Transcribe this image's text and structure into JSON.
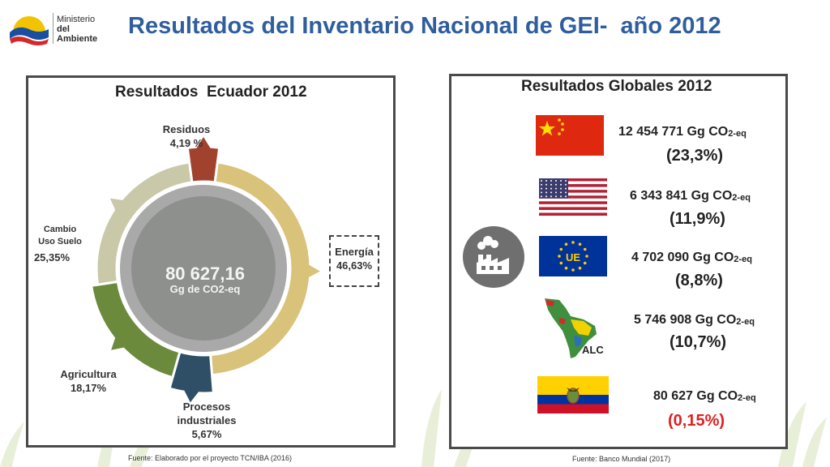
{
  "header": {
    "logo_line1": "Ministerio",
    "logo_line2": "del Ambiente",
    "title": "Resultados del Inventario Nacional de GEI-  año 2012"
  },
  "left_panel": {
    "title": "Resultados  Ecuador 2012",
    "center_value": "80 627,16",
    "center_unit": "Gg de CO2-eq",
    "footer": "Fuente: Elaborado por el proyecto TCN/IBA (2016)"
  },
  "chart_data": {
    "type": "pie",
    "title": "Resultados  Ecuador 2012",
    "total": "80 627,16",
    "unit": "Gg de CO2-eq",
    "slices": [
      {
        "label": "Energía",
        "value": 46.63,
        "display": "46,63%",
        "color": "#d9c27a"
      },
      {
        "label": "Procesos industriales",
        "value": 5.67,
        "display": "5,67%",
        "color": "#2f4f66"
      },
      {
        "label": "Agricultura",
        "value": 18.17,
        "display": "18,17%",
        "color": "#6b8a3c"
      },
      {
        "label": "Cambio Uso Suelo",
        "value": 25.35,
        "display": "25,35%",
        "color": "#c9c8a8"
      },
      {
        "label": "Residuos",
        "value": 4.19,
        "display": "4,19 %",
        "color": "#a0422e"
      }
    ]
  },
  "labels": {
    "residuos_name": "Residuos",
    "residuos_pct": "4,19 %",
    "cambio_name_1": "Cambio",
    "cambio_name_2": "Uso Suelo",
    "cambio_pct": "25,35%",
    "energia_name": "Energía",
    "energia_pct": "46,63%",
    "agricultura_name": "Agricultura",
    "agricultura_pct": "18,17%",
    "procesos_name_1": "Procesos",
    "procesos_name_2": "industriales",
    "procesos_pct": "5,67%"
  },
  "right_panel": {
    "title": "Resultados Globales 2012",
    "footer": "Fuente: Banco Mundial (2017)",
    "eu_label": "UE",
    "alc_label": "ALC",
    "rows": [
      {
        "value": "12 454 771 Gg CO",
        "sub": "2-eq",
        "pct": "(23,3%)",
        "flag": "china-flag"
      },
      {
        "value": "6 343 841 Gg CO",
        "sub": "2-eq",
        "pct": "(11,9%)",
        "flag": "usa-flag"
      },
      {
        "value": "4 702 090 Gg CO",
        "sub": "2-eq",
        "pct": "(8,8%)",
        "flag": "eu-flag"
      },
      {
        "value": "5 746 908 Gg CO",
        "sub": "2-eq",
        "pct": "(10,7%)",
        "flag": "latin-america-map"
      },
      {
        "value": "80 627 Gg CO",
        "sub": "2-eq",
        "pct": "(0,15%)",
        "flag": "ecuador-flag"
      }
    ]
  }
}
